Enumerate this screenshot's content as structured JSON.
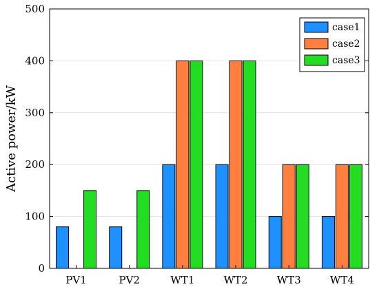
{
  "chart_data": {
    "type": "bar",
    "title": "",
    "xlabel": "",
    "ylabel": "Active power/kW",
    "ylim": [
      0,
      500
    ],
    "yticks": [
      "0",
      "100",
      "200",
      "300",
      "400",
      "500"
    ],
    "grid": true,
    "legend_position": "top-right",
    "categories": [
      "PV1",
      "PV2",
      "WT1",
      "WT2",
      "WT3",
      "WT4"
    ],
    "series": [
      {
        "name": "case1",
        "color": "#1e90ff",
        "values": [
          80,
          80,
          200,
          200,
          100,
          100
        ]
      },
      {
        "name": "case2",
        "color": "#ff7f3f",
        "values": [
          0,
          0,
          400,
          400,
          200,
          200
        ]
      },
      {
        "name": "case3",
        "color": "#22dd22",
        "values": [
          150,
          150,
          400,
          400,
          200,
          200
        ]
      }
    ]
  }
}
